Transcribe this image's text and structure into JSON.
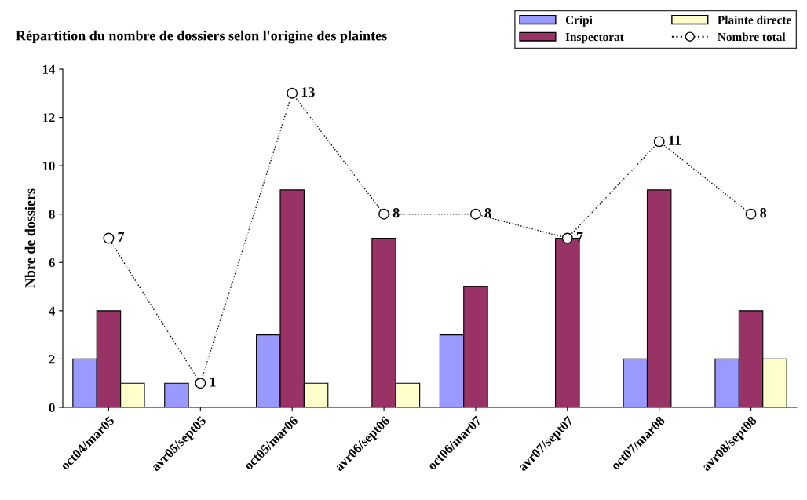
{
  "chart_data": {
    "type": "bar",
    "title": "Répartition du nombre de dossiers selon l'origine des plaintes",
    "ylabel": "Nbre de dossiers",
    "categories": [
      "oct04/mar05",
      "avr05/sept05",
      "oct05/mar06",
      "avr06/sept06",
      "oct06/mar07",
      "avr07/sept07",
      "oct07/mar08",
      "avr08/sept08"
    ],
    "series": [
      {
        "name": "Cripi",
        "color": "#9999ff",
        "values": [
          2,
          1,
          3,
          0,
          3,
          0,
          2,
          2
        ]
      },
      {
        "name": "Inspectorat",
        "color": "#993366",
        "values": [
          4,
          0,
          9,
          7,
          5,
          7,
          9,
          4
        ]
      },
      {
        "name": "Plainte directe",
        "color": "#ffffcc",
        "values": [
          1,
          0,
          1,
          1,
          0,
          0,
          0,
          2
        ]
      },
      {
        "name": "Nombre total",
        "type": "line",
        "color": "#000000",
        "marker": "circle",
        "line_style": "dotted",
        "values": [
          7,
          1,
          13,
          8,
          8,
          7,
          11,
          8
        ],
        "value_labels": [
          "7",
          "1",
          "13",
          "8",
          "8",
          "7",
          "11",
          "8"
        ]
      }
    ],
    "ylim": [
      0,
      14
    ],
    "yticks": [
      0,
      2,
      4,
      6,
      8,
      10,
      12,
      14
    ],
    "grid": false,
    "legend": "top right"
  }
}
